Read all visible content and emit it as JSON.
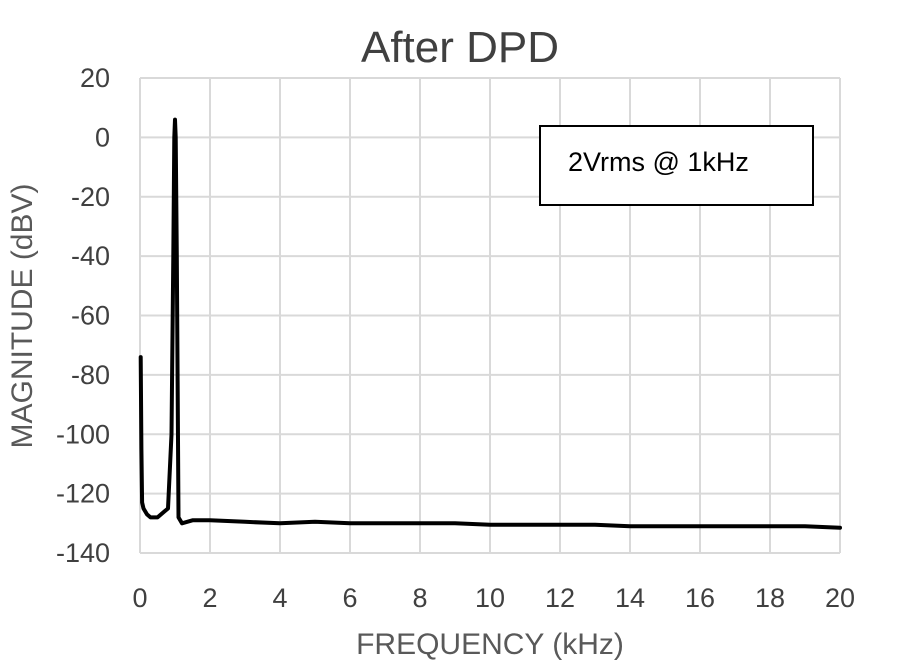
{
  "chart_data": {
    "type": "line",
    "title": "After DPD",
    "xlabel": "FREQUENCY (kHz)",
    "ylabel": "MAGNITUDE (dBV)",
    "xlim": [
      0,
      20
    ],
    "ylim": [
      -140,
      20
    ],
    "x_ticks": [
      0,
      2,
      4,
      6,
      8,
      10,
      12,
      14,
      16,
      18,
      20
    ],
    "y_ticks": [
      20,
      0,
      -20,
      -40,
      -60,
      -80,
      -100,
      -120,
      -140
    ],
    "grid": true,
    "legend": "none",
    "annotation": "2Vrms @ 1kHz",
    "line_color": "#000000",
    "series": [
      {
        "x": [
          0.02,
          0.04,
          0.06,
          0.1,
          0.2,
          0.3,
          0.4,
          0.5,
          0.6,
          0.7,
          0.8,
          0.9,
          0.95,
          0.98,
          1.0,
          1.02,
          1.05,
          1.1,
          1.2,
          1.5,
          2,
          3,
          4,
          5,
          6,
          7,
          8,
          9,
          10,
          11,
          12,
          13,
          14,
          15,
          16,
          17,
          18,
          19,
          20
        ],
        "y": [
          -74,
          -105,
          -123,
          -125,
          -127,
          -128,
          -128,
          -128,
          -127,
          -126,
          -125,
          -100,
          -40,
          0,
          6,
          0,
          -40,
          -128,
          -130,
          -129,
          -129,
          -129.5,
          -130,
          -129.5,
          -130,
          -130,
          -130,
          -130,
          -130.5,
          -130.5,
          -130.5,
          -130.5,
          -131,
          -131,
          -131,
          -131,
          -131,
          -131,
          -131.5
        ]
      }
    ]
  }
}
